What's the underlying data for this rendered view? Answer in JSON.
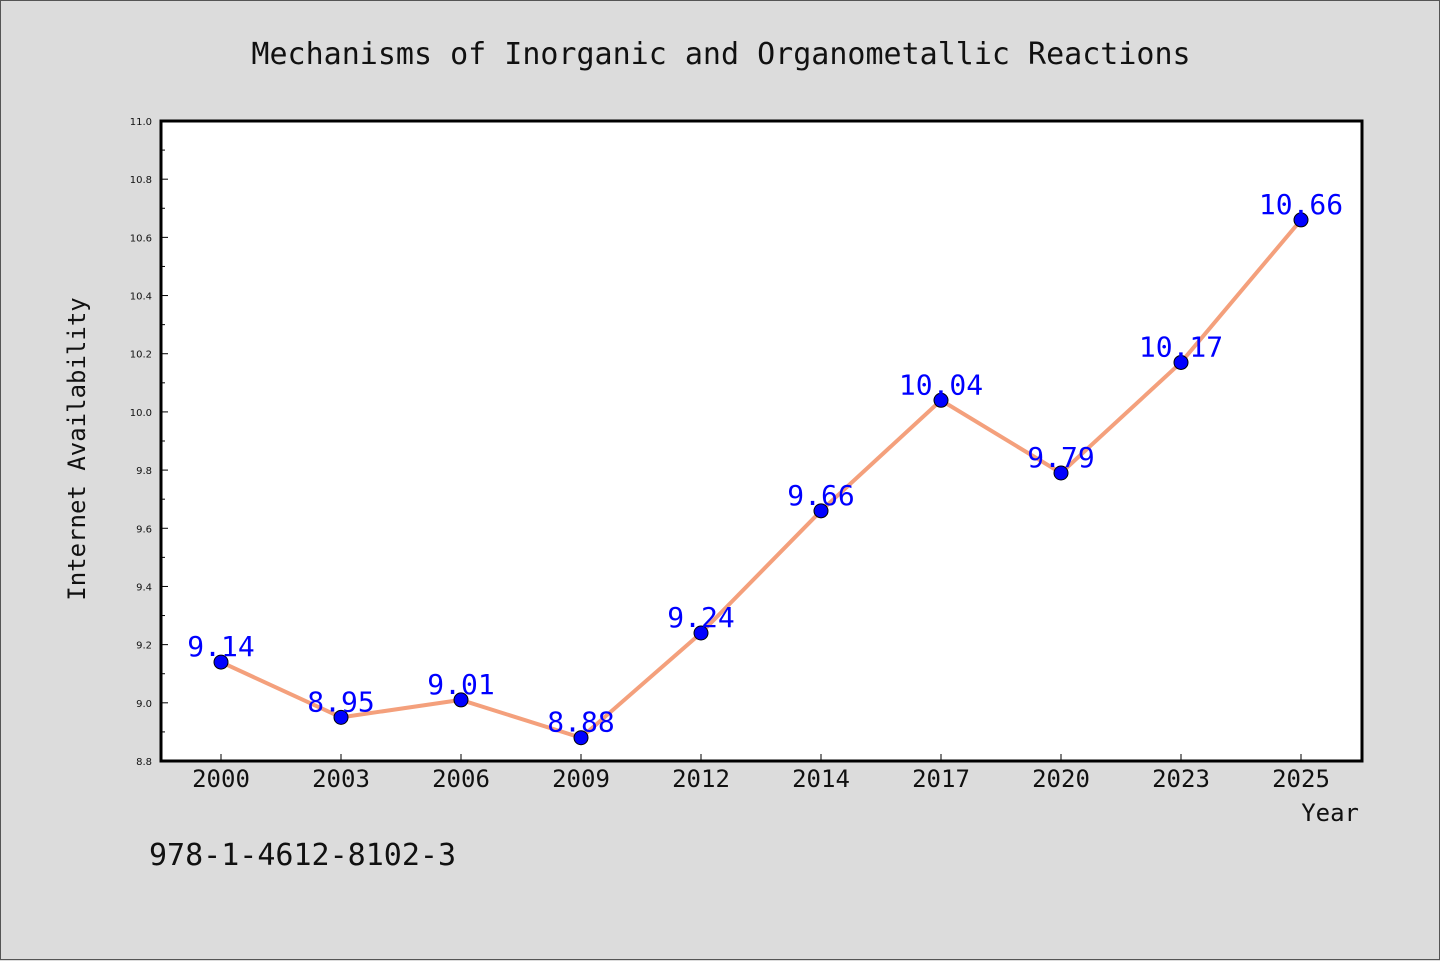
{
  "chart_data": {
    "type": "line",
    "title": "Mechanisms of Inorganic and Organometallic Reactions",
    "xlabel": "Year",
    "ylabel": "Internet Availability",
    "categories": [
      "2000",
      "2003",
      "2006",
      "2009",
      "2012",
      "2014",
      "2017",
      "2020",
      "2023",
      "2025"
    ],
    "series": [
      {
        "values": [
          9.14,
          8.95,
          9.01,
          8.88,
          9.24,
          9.66,
          10.04,
          9.79,
          10.17,
          10.66
        ],
        "data_labels": [
          "9.14",
          "8.95",
          "9.01",
          "8.88",
          "9.24",
          "9.66",
          "10.04",
          "9.79",
          "10.17",
          "10.66"
        ],
        "line_color": "#f4a07c",
        "marker_color": "#0000ff"
      }
    ],
    "ylim": [
      8.8,
      11.0
    ],
    "yticks": [
      "8.8",
      "9.0",
      "9.2",
      "9.4",
      "9.6",
      "9.8",
      "10.0",
      "10.2",
      "10.4",
      "10.6",
      "10.8",
      "11.0"
    ],
    "grid": false,
    "legend": "none"
  },
  "annotation": {
    "isbn": "978-1-4612-8102-3"
  },
  "colors": {
    "background": "#dcdcdc",
    "plot_background": "#ffffff",
    "data_label": "#0000ff"
  }
}
